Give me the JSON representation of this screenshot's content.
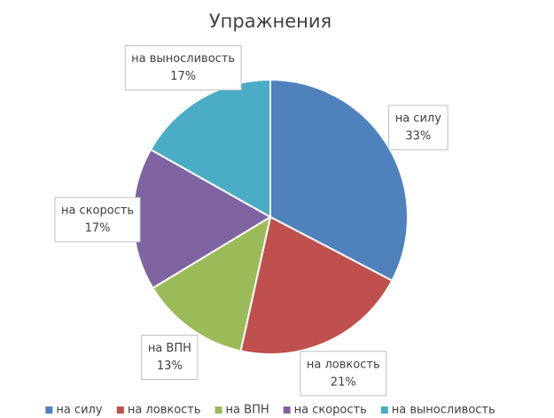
{
  "chart_data": {
    "type": "pie",
    "title": "Упражнения",
    "categories": [
      "на силу",
      "на ловкость",
      "на ВПН",
      "на скорость",
      "на выносливость"
    ],
    "values": [
      33,
      21,
      13,
      17,
      17
    ],
    "value_labels": [
      "33%",
      "21%",
      "13%",
      "17%",
      "17%"
    ],
    "colors": [
      "#4f81bd",
      "#c0504d",
      "#9bbb59",
      "#8064a2",
      "#4bacc6"
    ],
    "legend": "bottom"
  }
}
